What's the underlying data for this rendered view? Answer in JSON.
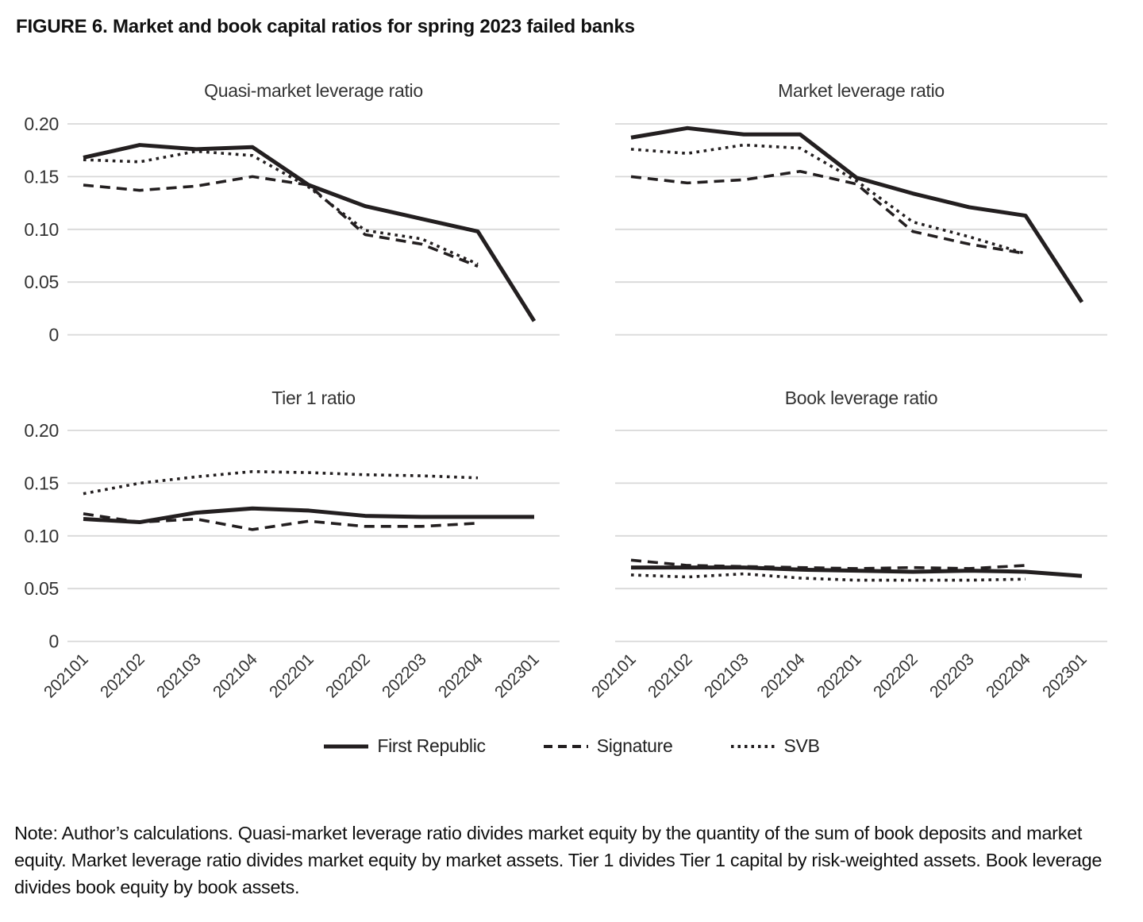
{
  "figure": {
    "title": "FIGURE 6. Market and book capital ratios for spring 2023 failed banks",
    "note": "Note: Author’s calculations. Quasi-market leverage ratio divides market equity by the quantity of the sum of book deposits and market equity. Market leverage ratio divides market equity by market assets. Tier 1 divides Tier 1 capital by risk-weighted assets. Book leverage divides book equity by book assets."
  },
  "colors": {
    "line": "#231f20",
    "grid": "#d8d8d8",
    "text": "#333333"
  },
  "legend": [
    {
      "name": "First Republic",
      "style": "solid"
    },
    {
      "name": "Signature",
      "style": "dashed"
    },
    {
      "name": "SVB",
      "style": "dotted"
    }
  ],
  "chart_data": [
    {
      "type": "line",
      "title": "Quasi-market leverage ratio",
      "position": "top-left",
      "show_y_labels": true,
      "show_x_labels": false,
      "grid": true,
      "ylim": [
        0,
        0.21
      ],
      "y_ticks": [
        0.2,
        0.15,
        0.1,
        0.05,
        0
      ],
      "y_tick_labels": [
        "0.20",
        "0.15",
        "0.10",
        "0.05",
        "0"
      ],
      "categories": [
        "202101",
        "202102",
        "202103",
        "202104",
        "202201",
        "202202",
        "202203",
        "202204",
        "202301"
      ],
      "series": [
        {
          "name": "First Republic",
          "style": "solid",
          "values": [
            0.168,
            0.18,
            0.176,
            0.178,
            0.142,
            0.122,
            0.11,
            0.098,
            0.013
          ]
        },
        {
          "name": "Signature",
          "style": "dashed",
          "values": [
            0.142,
            0.137,
            0.141,
            0.15,
            0.142,
            0.095,
            0.086,
            0.065,
            null
          ]
        },
        {
          "name": "SVB",
          "style": "dotted",
          "values": [
            0.166,
            0.164,
            0.174,
            0.17,
            0.14,
            0.099,
            0.091,
            0.067,
            null
          ]
        }
      ]
    },
    {
      "type": "line",
      "title": "Market leverage ratio",
      "position": "top-right",
      "show_y_labels": false,
      "show_x_labels": false,
      "grid": true,
      "ylim": [
        0,
        0.21
      ],
      "y_ticks": [
        0.2,
        0.15,
        0.1,
        0.05,
        0
      ],
      "y_tick_labels": [
        "0.20",
        "0.15",
        "0.10",
        "0.05",
        "0"
      ],
      "categories": [
        "202101",
        "202102",
        "202103",
        "202104",
        "202201",
        "202202",
        "202203",
        "202204",
        "202301"
      ],
      "series": [
        {
          "name": "First Republic",
          "style": "solid",
          "values": [
            0.187,
            0.196,
            0.19,
            0.19,
            0.149,
            0.134,
            0.121,
            0.113,
            0.031
          ]
        },
        {
          "name": "Signature",
          "style": "dashed",
          "values": [
            0.15,
            0.144,
            0.147,
            0.155,
            0.143,
            0.098,
            0.086,
            0.077,
            null
          ]
        },
        {
          "name": "SVB",
          "style": "dotted",
          "values": [
            0.176,
            0.172,
            0.18,
            0.177,
            0.146,
            0.107,
            0.093,
            0.077,
            null
          ]
        }
      ]
    },
    {
      "type": "line",
      "title": "Tier 1 ratio",
      "position": "bottom-left",
      "show_y_labels": true,
      "show_x_labels": true,
      "grid": true,
      "ylim": [
        0,
        0.21
      ],
      "y_ticks": [
        0.2,
        0.15,
        0.1,
        0.05,
        0
      ],
      "y_tick_labels": [
        "0.20",
        "0.15",
        "0.10",
        "0.05",
        "0"
      ],
      "categories": [
        "202101",
        "202102",
        "202103",
        "202104",
        "202201",
        "202202",
        "202203",
        "202204",
        "202301"
      ],
      "series": [
        {
          "name": "First Republic",
          "style": "solid",
          "values": [
            0.116,
            0.113,
            0.122,
            0.126,
            0.124,
            0.119,
            0.118,
            0.118,
            0.118
          ]
        },
        {
          "name": "Signature",
          "style": "dashed",
          "values": [
            0.121,
            0.113,
            0.116,
            0.106,
            0.114,
            0.109,
            0.109,
            0.112,
            null
          ]
        },
        {
          "name": "SVB",
          "style": "dotted",
          "values": [
            0.14,
            0.15,
            0.156,
            0.161,
            0.16,
            0.158,
            0.157,
            0.155,
            null
          ]
        }
      ]
    },
    {
      "type": "line",
      "title": "Book leverage ratio",
      "position": "bottom-right",
      "show_y_labels": false,
      "show_x_labels": true,
      "grid": true,
      "ylim": [
        0,
        0.21
      ],
      "y_ticks": [
        0.2,
        0.15,
        0.1,
        0.05,
        0
      ],
      "y_tick_labels": [
        "0.20",
        "0.15",
        "0.10",
        "0.05",
        "0"
      ],
      "categories": [
        "202101",
        "202102",
        "202103",
        "202104",
        "202201",
        "202202",
        "202203",
        "202204",
        "202301"
      ],
      "series": [
        {
          "name": "First Republic",
          "style": "solid",
          "values": [
            0.07,
            0.07,
            0.07,
            0.068,
            0.067,
            0.066,
            0.067,
            0.066,
            0.062
          ]
        },
        {
          "name": "Signature",
          "style": "dashed",
          "values": [
            0.077,
            0.072,
            0.071,
            0.07,
            0.069,
            0.07,
            0.069,
            0.072,
            null
          ]
        },
        {
          "name": "SVB",
          "style": "dotted",
          "values": [
            0.063,
            0.061,
            0.064,
            0.06,
            0.058,
            0.058,
            0.058,
            0.059,
            null
          ]
        }
      ]
    }
  ]
}
